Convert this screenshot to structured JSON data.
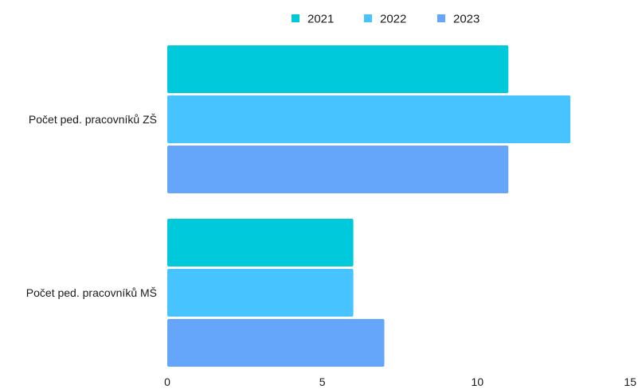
{
  "chart_data": {
    "type": "bar",
    "orientation": "horizontal",
    "categories": [
      "Počet ped. pracovníků ZŠ",
      "Počet ped. pracovníků MŠ"
    ],
    "series": [
      {
        "name": "2021",
        "values": [
          11,
          6
        ],
        "color": "#00c9db"
      },
      {
        "name": "2022",
        "values": [
          13,
          6
        ],
        "color": "#47c3ff"
      },
      {
        "name": "2023",
        "values": [
          11,
          7
        ],
        "color": "#66a6fa"
      }
    ],
    "xlim": [
      0,
      15
    ],
    "xticks": [
      "0",
      "5",
      "10",
      "15"
    ],
    "legend_position": "top",
    "grid": false
  }
}
